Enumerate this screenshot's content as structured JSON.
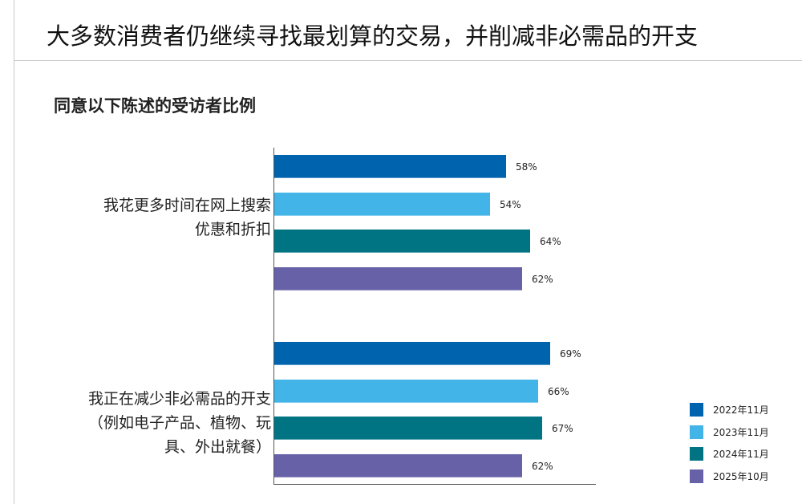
{
  "slide": {
    "title": "大多数消费者仍继续寻找最划算的交易，并削减非必需品的开支"
  },
  "chart_data": {
    "type": "bar",
    "orientation": "horizontal",
    "title": "同意以下陈述的受访者比例",
    "xlabel": "",
    "ylabel": "",
    "xlim": [
      0,
      80
    ],
    "grid": false,
    "legend_position": "right-bottom",
    "categories": [
      "我花更多时间在网上搜索优惠和折扣",
      "我正在减少非必需品的开支（例如电子产品、植物、玩具、外出就餐）"
    ],
    "series": [
      {
        "name": "2022年11月",
        "color": "#0063AE",
        "values": [
          58,
          69
        ]
      },
      {
        "name": "2023年11月",
        "color": "#42B4E8",
        "values": [
          54,
          66
        ]
      },
      {
        "name": "2024年11月",
        "color": "#007482",
        "values": [
          64,
          67
        ]
      },
      {
        "name": "2025年10月",
        "color": "#6762A8",
        "values": [
          62,
          62
        ]
      }
    ],
    "value_labels": [
      [
        "58%",
        "54%",
        "64%",
        "62%"
      ],
      [
        "69%",
        "66%",
        "67%",
        "62%"
      ]
    ]
  },
  "categories_display": [
    {
      "lines": [
        "我花更多时间在网上搜索",
        "优惠和折扣"
      ]
    },
    {
      "lines": [
        "我正在减少非必需品的开支",
        "（例如电子产品、植物、玩",
        "具、外出就餐）"
      ]
    }
  ],
  "legend": {
    "items": [
      {
        "label": "2022年11月",
        "color": "#0063AE"
      },
      {
        "label": "2023年11月",
        "color": "#42B4E8"
      },
      {
        "label": "2024年11月",
        "color": "#007482"
      },
      {
        "label": "2025年10月",
        "color": "#6762A8"
      }
    ]
  }
}
